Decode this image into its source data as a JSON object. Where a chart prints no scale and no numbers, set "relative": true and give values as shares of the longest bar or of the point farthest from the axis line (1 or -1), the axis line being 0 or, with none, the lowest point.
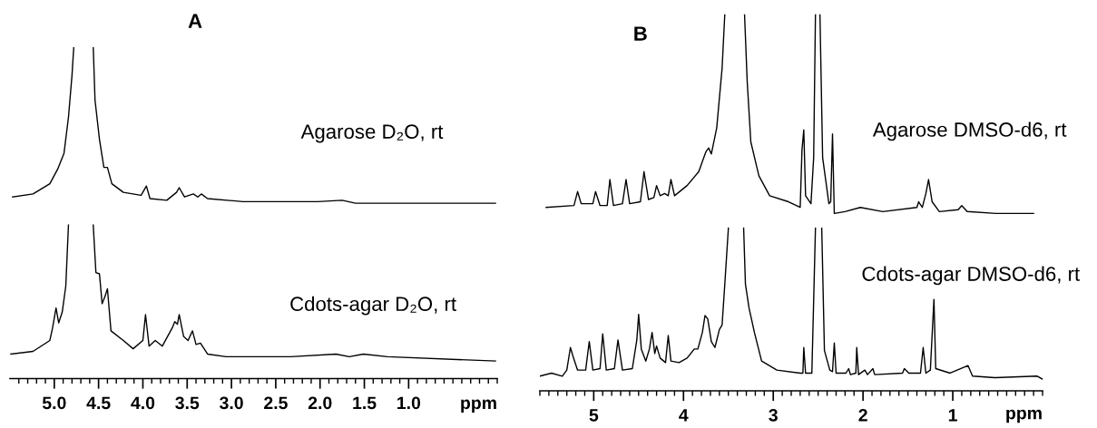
{
  "chart_data": [
    {
      "type": "line",
      "title": "A",
      "relative": true,
      "tick_labels": "x",
      "xlabel": "ppm",
      "xlim": [
        5.5,
        0.0
      ],
      "xticks": [
        {
          "value": 5.4,
          "label": null
        },
        {
          "value": 5.3,
          "label": null
        },
        {
          "value": 5.2,
          "label": null
        },
        {
          "value": 5.1,
          "label": null
        },
        {
          "value": 5.0,
          "label": "5.0"
        },
        {
          "value": 4.9,
          "label": null
        },
        {
          "value": 4.8,
          "label": null
        },
        {
          "value": 4.7,
          "label": null
        },
        {
          "value": 4.6,
          "label": null
        },
        4.5,
        {
          "value": 4.4,
          "label": null
        },
        {
          "value": 4.3,
          "label": null
        },
        {
          "value": 4.2,
          "label": null
        },
        {
          "value": 4.1,
          "label": null
        },
        {
          "value": 4.0,
          "label": "4.0"
        },
        {
          "value": 3.9,
          "label": null
        },
        {
          "value": 3.8,
          "label": null
        },
        {
          "value": 3.7,
          "label": null
        },
        {
          "value": 3.6,
          "label": null
        },
        3.5,
        {
          "value": 3.4,
          "label": null
        },
        {
          "value": 3.3,
          "label": null
        },
        {
          "value": 3.2,
          "label": null
        },
        {
          "value": 3.1,
          "label": null
        },
        {
          "value": 3.0,
          "label": "3.0"
        },
        {
          "value": 2.9,
          "label": null
        },
        {
          "value": 2.8,
          "label": null
        },
        {
          "value": 2.7,
          "label": null
        },
        {
          "value": 2.6,
          "label": null
        },
        2.5,
        {
          "value": 2.4,
          "label": null
        },
        {
          "value": 2.3,
          "label": null
        },
        {
          "value": 2.2,
          "label": null
        },
        {
          "value": 2.1,
          "label": null
        },
        {
          "value": 2.0,
          "label": "2.0"
        },
        {
          "value": 1.9,
          "label": null
        },
        {
          "value": 1.8,
          "label": null
        },
        {
          "value": 1.7,
          "label": null
        },
        {
          "value": 1.6,
          "label": null
        },
        1.5,
        {
          "value": 1.4,
          "label": null
        },
        {
          "value": 1.3,
          "label": null
        },
        {
          "value": 1.2,
          "label": null
        },
        {
          "value": 1.1,
          "label": null
        },
        {
          "value": 1.0,
          "label": "1.0"
        },
        {
          "value": 0.9,
          "label": null
        },
        {
          "value": 0.8,
          "label": null
        },
        {
          "value": 0.7,
          "label": null
        },
        {
          "value": 0.6,
          "label": null
        },
        {
          "value": 0.5,
          "label": null
        },
        {
          "value": 0.4,
          "label": null
        },
        {
          "value": 0.3,
          "label": null
        },
        {
          "value": 0.2,
          "label": null
        },
        {
          "value": 0.1,
          "label": null
        },
        {
          "value": 0.0,
          "label": null
        }
      ],
      "series": [
        {
          "name": "Agarose D₂O, rt",
          "color": "#000000",
          "x": [
            5.47,
            5.24,
            5.05,
            4.96,
            4.89,
            4.84,
            4.8,
            4.78,
            4.67,
            4.56,
            4.54,
            4.49,
            4.44,
            4.4,
            4.35,
            4.22,
            4.02,
            3.96,
            3.92,
            3.73,
            3.62,
            3.59,
            3.53,
            3.43,
            3.38,
            3.34,
            3.27,
            2.87,
            2.4,
            2.03,
            1.75,
            1.6,
            0.88,
            0.02
          ],
          "values": [
            0.548,
            0.557,
            0.588,
            0.633,
            0.68,
            0.788,
            0.915,
            1.0,
            null,
            1.0,
            0.84,
            0.722,
            0.637,
            0.637,
            0.588,
            0.562,
            0.553,
            0.581,
            0.543,
            0.538,
            0.562,
            0.576,
            0.548,
            0.557,
            0.548,
            0.557,
            0.543,
            0.534,
            0.534,
            0.534,
            0.538,
            0.529,
            0.529,
            0.529
          ]
        },
        {
          "name": "Cdots-agar D₂O, rt",
          "color": "#000000",
          "x": [
            5.49,
            5.24,
            5.05,
            5.02,
            4.98,
            4.95,
            4.91,
            4.87,
            4.84,
            4.7,
            4.56,
            4.53,
            4.49,
            4.46,
            4.43,
            4.4,
            4.36,
            4.22,
            4.11,
            4.0,
            3.97,
            3.93,
            3.86,
            3.78,
            3.67,
            3.64,
            3.61,
            3.59,
            3.54,
            3.49,
            3.44,
            3.4,
            3.35,
            3.27,
            3.06,
            2.33,
            1.82,
            1.67,
            1.51,
            1.24,
            0.02
          ],
          "values": [
            0.074,
            0.082,
            0.115,
            0.152,
            0.213,
            0.168,
            0.201,
            0.279,
            0.463,
            null,
            0.463,
            0.32,
            0.316,
            0.226,
            0.246,
            0.271,
            0.144,
            0.115,
            0.09,
            0.115,
            0.193,
            0.098,
            0.115,
            0.098,
            0.152,
            0.172,
            0.164,
            0.193,
            0.127,
            0.115,
            0.144,
            0.103,
            0.107,
            0.074,
            0.066,
            0.066,
            0.074,
            0.066,
            0.074,
            0.066,
            0.053
          ]
        }
      ]
    },
    {
      "type": "line",
      "title": "B",
      "relative": true,
      "tick_labels": "x",
      "xlabel": "ppm",
      "xlim": [
        5.6,
        0.0
      ],
      "xticks": [
        {
          "value": 5.6,
          "label": null
        },
        {
          "value": 5.5,
          "label": null
        },
        {
          "value": 5.4,
          "label": null
        },
        {
          "value": 5.3,
          "label": null
        },
        {
          "value": 5.2,
          "label": null
        },
        {
          "value": 5.1,
          "label": null
        },
        5,
        {
          "value": 4.9,
          "label": null
        },
        {
          "value": 4.8,
          "label": null
        },
        {
          "value": 4.7,
          "label": null
        },
        {
          "value": 4.6,
          "label": null
        },
        {
          "value": 4.5,
          "label": null
        },
        {
          "value": 4.4,
          "label": null
        },
        {
          "value": 4.3,
          "label": null
        },
        {
          "value": 4.2,
          "label": null
        },
        {
          "value": 4.1,
          "label": null
        },
        4,
        {
          "value": 3.9,
          "label": null
        },
        {
          "value": 3.8,
          "label": null
        },
        {
          "value": 3.7,
          "label": null
        },
        {
          "value": 3.6,
          "label": null
        },
        {
          "value": 3.5,
          "label": null
        },
        {
          "value": 3.4,
          "label": null
        },
        {
          "value": 3.3,
          "label": null
        },
        {
          "value": 3.2,
          "label": null
        },
        {
          "value": 3.1,
          "label": null
        },
        3,
        {
          "value": 2.9,
          "label": null
        },
        {
          "value": 2.8,
          "label": null
        },
        {
          "value": 2.7,
          "label": null
        },
        {
          "value": 2.6,
          "label": null
        },
        {
          "value": 2.5,
          "label": null
        },
        {
          "value": 2.4,
          "label": null
        },
        {
          "value": 2.3,
          "label": null
        },
        {
          "value": 2.2,
          "label": null
        },
        {
          "value": 2.1,
          "label": null
        },
        2,
        {
          "value": 1.9,
          "label": null
        },
        {
          "value": 1.8,
          "label": null
        },
        {
          "value": 1.7,
          "label": null
        },
        {
          "value": 1.6,
          "label": null
        },
        {
          "value": 1.5,
          "label": null
        },
        {
          "value": 1.4,
          "label": null
        },
        {
          "value": 1.3,
          "label": null
        },
        {
          "value": 1.2,
          "label": null
        },
        {
          "value": 1.1,
          "label": null
        },
        1,
        {
          "value": 0.9,
          "label": null
        },
        {
          "value": 0.8,
          "label": null
        },
        {
          "value": 0.7,
          "label": null
        },
        {
          "value": 0.6,
          "label": null
        },
        {
          "value": 0.5,
          "label": null
        },
        {
          "value": 0.4,
          "label": null
        },
        {
          "value": 0.3,
          "label": null
        },
        {
          "value": 0.2,
          "label": null
        },
        {
          "value": 0.1,
          "label": null
        },
        {
          "value": 0.0,
          "label": null
        }
      ],
      "series": [
        {
          "name": "Agarose DMSO-d6, rt",
          "color": "#000000",
          "x": [
            5.53,
            5.22,
            5.18,
            5.14,
            5.01,
            4.98,
            4.93,
            4.85,
            4.82,
            4.78,
            4.68,
            4.64,
            4.6,
            4.48,
            4.44,
            4.39,
            4.33,
            4.3,
            4.26,
            4.21,
            4.17,
            4.14,
            4.1,
            3.96,
            3.83,
            3.75,
            3.72,
            3.69,
            3.63,
            3.57,
            3.54,
            3.43,
            3.32,
            3.29,
            3.25,
            3.16,
            3.04,
            2.83,
            2.7,
            2.68,
            2.66,
            2.64,
            2.58,
            2.55,
            2.53,
            2.5,
            2.48,
            2.45,
            2.38,
            2.36,
            2.34,
            2.32,
            2.2,
            2.03,
            1.78,
            1.4,
            1.38,
            1.34,
            1.3,
            1.27,
            1.23,
            1.15,
            0.94,
            0.9,
            0.84,
            0.52,
            0.1
          ],
          "values": [
            0.487,
            0.492,
            0.529,
            0.497,
            0.497,
            0.529,
            0.492,
            0.492,
            0.561,
            0.492,
            0.497,
            0.561,
            0.497,
            0.502,
            0.582,
            0.508,
            0.513,
            0.545,
            0.518,
            0.524,
            0.518,
            0.561,
            0.518,
            0.545,
            0.582,
            0.635,
            0.645,
            0.629,
            0.698,
            0.857,
            1.0,
            null,
            1.0,
            0.82,
            0.661,
            0.571,
            0.518,
            0.502,
            0.487,
            0.64,
            0.693,
            0.518,
            0.497,
            0.619,
            1.0,
            null,
            1.0,
            0.619,
            0.497,
            0.502,
            0.682,
            0.471,
            0.476,
            0.487,
            0.476,
            0.487,
            0.502,
            0.487,
            0.524,
            0.561,
            0.502,
            0.476,
            0.481,
            0.492,
            0.476,
            0.471,
            0.471
          ]
        },
        {
          "name": "Cdots-agar DMSO-d6, rt",
          "color": "#000000",
          "x": [
            5.6,
            5.47,
            5.35,
            5.3,
            5.26,
            5.23,
            5.18,
            5.09,
            5.05,
            5.01,
            4.93,
            4.9,
            4.86,
            4.77,
            4.73,
            4.68,
            4.57,
            4.52,
            4.5,
            4.47,
            4.42,
            4.38,
            4.35,
            4.32,
            4.3,
            4.26,
            4.2,
            4.17,
            4.14,
            4.05,
            3.96,
            3.88,
            3.84,
            3.79,
            3.76,
            3.73,
            3.69,
            3.65,
            3.6,
            3.57,
            3.54,
            3.5,
            3.42,
            3.33,
            3.31,
            3.27,
            3.21,
            3.13,
            2.96,
            2.7,
            2.67,
            2.66,
            2.64,
            2.57,
            2.53,
            2.5,
            2.46,
            2.43,
            2.37,
            2.34,
            2.32,
            2.3,
            2.19,
            2.16,
            2.14,
            2.08,
            2.07,
            2.05,
            1.98,
            1.95,
            1.89,
            1.87,
            1.56,
            1.54,
            1.49,
            1.36,
            1.33,
            1.3,
            1.25,
            1.21,
            1.19,
            1.03,
            0.83,
            0.78,
            0.53,
            0.06,
            0.0
          ],
          "values": [
            0.039,
            0.047,
            0.039,
            0.055,
            0.115,
            0.091,
            0.055,
            0.055,
            0.131,
            0.055,
            0.059,
            0.151,
            0.055,
            0.059,
            0.135,
            0.055,
            0.059,
            0.135,
            0.203,
            0.111,
            0.079,
            0.111,
            0.155,
            0.099,
            0.119,
            0.087,
            0.075,
            0.147,
            0.079,
            0.075,
            0.087,
            0.111,
            0.111,
            0.155,
            0.2,
            0.191,
            0.131,
            0.115,
            0.163,
            0.175,
            0.283,
            0.432,
            null,
            0.432,
            0.283,
            0.22,
            0.155,
            0.079,
            0.055,
            0.047,
            0.047,
            0.115,
            0.047,
            0.047,
            0.432,
            null,
            0.432,
            0.107,
            0.055,
            0.051,
            0.127,
            0.047,
            0.047,
            0.059,
            0.043,
            0.047,
            0.115,
            0.043,
            0.055,
            0.043,
            0.059,
            0.043,
            0.047,
            0.059,
            0.047,
            0.047,
            0.115,
            0.047,
            0.055,
            0.243,
            0.059,
            0.047,
            0.067,
            0.039,
            0.035,
            0.039,
            0.031
          ]
        }
      ]
    }
  ]
}
